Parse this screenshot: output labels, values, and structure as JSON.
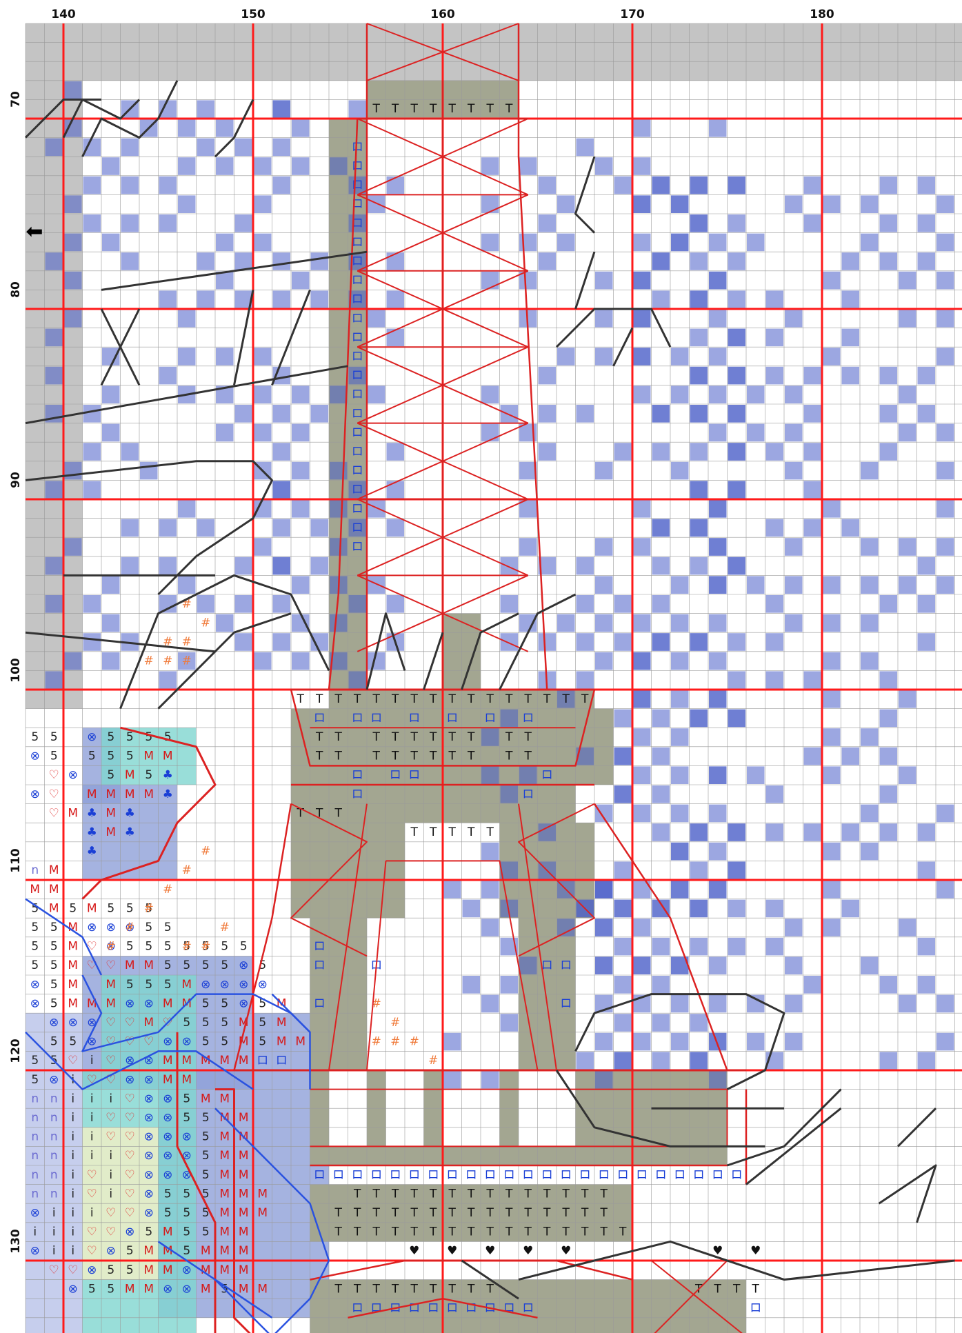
{
  "pattern": {
    "column_labels": [
      "140",
      "150",
      "160",
      "170",
      "180"
    ],
    "row_labels": [
      "70",
      "80",
      "90",
      "100",
      "110",
      "120",
      "130"
    ],
    "colors": {
      "grid": "#9a9a9a",
      "major_line": "#ff1a1a",
      "shade": "#c4c4c4",
      "check_blue": "#4a5fc8",
      "tan": "#a3a691",
      "tower_red": "#dc2222",
      "backstitch": "#333333",
      "blue_outline": "#2a52e0",
      "salmon": "#f07a3a",
      "mauve": "#8fa0d8",
      "teal": "#7fd6cf",
      "cream": "#f3efc4"
    },
    "symbols": {
      "t": "T",
      "u": "ロ",
      "five": "5",
      "m": "M",
      "otimes": "⊗",
      "heart": "♡",
      "i": "i",
      "n": "n",
      "club": "♣",
      "hash": "#",
      "bheart": "♥",
      "arrow": "⬅"
    }
  }
}
